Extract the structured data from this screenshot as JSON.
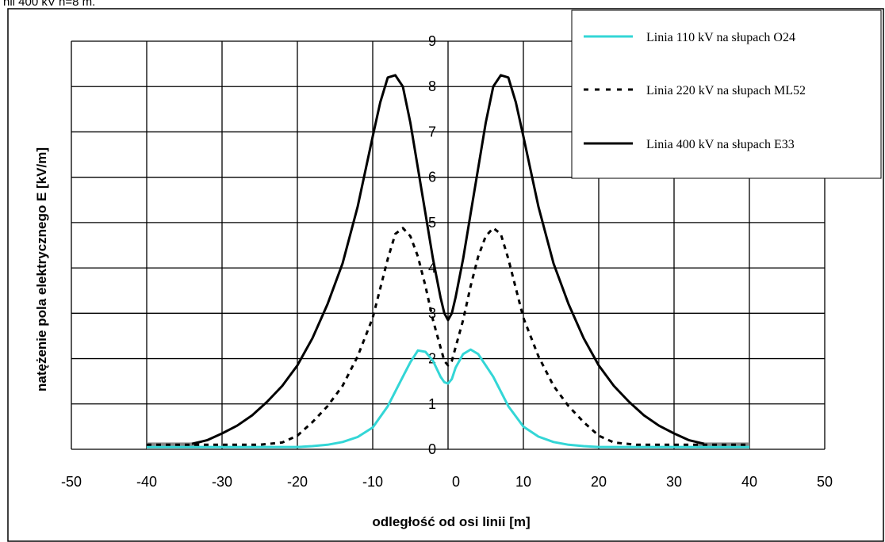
{
  "caption": "nii 400 kV h=8 m.",
  "chart_data": {
    "type": "line",
    "title": "",
    "xlabel": "odległość od osi linii [m]",
    "ylabel": "natężenie pola elektrycznego E [kV/m]",
    "xlim": [
      -50,
      50
    ],
    "ylim": [
      0,
      9
    ],
    "x_ticks": [
      -50,
      -40,
      -30,
      -20,
      -10,
      0,
      10,
      20,
      30,
      40,
      50
    ],
    "y_ticks": [
      0,
      1,
      2,
      3,
      4,
      5,
      6,
      7,
      8,
      9
    ],
    "grid": true,
    "legend_position": "top-right",
    "series": [
      {
        "name": "Linia 110 kV na słupach O24",
        "color": "#33d6d6",
        "style": "solid",
        "x": [
          -40,
          -30,
          -25,
          -20,
          -18,
          -16,
          -14,
          -12,
          -10,
          -8,
          -6,
          -5,
          -4,
          -3,
          -2,
          -1,
          -0.5,
          0,
          0.5,
          1,
          2,
          3,
          4,
          6,
          8,
          10,
          12,
          14,
          16,
          18,
          20,
          25,
          30,
          40
        ],
        "y": [
          0.05,
          0.05,
          0.05,
          0.05,
          0.07,
          0.1,
          0.16,
          0.27,
          0.48,
          0.95,
          1.6,
          1.92,
          2.18,
          2.15,
          1.95,
          1.6,
          1.48,
          1.45,
          1.55,
          1.8,
          2.1,
          2.2,
          2.1,
          1.6,
          0.95,
          0.5,
          0.28,
          0.16,
          0.1,
          0.07,
          0.05,
          0.05,
          0.05,
          0.05
        ]
      },
      {
        "name": "Linia 220 kV na słupach ML52",
        "color": "#000000",
        "style": "dashed",
        "x": [
          -40,
          -30,
          -25,
          -22,
          -20,
          -18,
          -16,
          -14,
          -12,
          -10,
          -8,
          -7,
          -6,
          -5,
          -4,
          -3,
          -2,
          -1,
          -0.5,
          0,
          0.5,
          1,
          2,
          3,
          4,
          5,
          6,
          7,
          8,
          10,
          12,
          14,
          16,
          18,
          20,
          22,
          25,
          30,
          40
        ],
        "y": [
          0.1,
          0.1,
          0.1,
          0.15,
          0.3,
          0.6,
          0.95,
          1.4,
          2.05,
          2.9,
          4.2,
          4.75,
          4.88,
          4.7,
          4.25,
          3.6,
          2.85,
          2.25,
          1.95,
          1.85,
          1.95,
          2.25,
          2.85,
          3.6,
          4.25,
          4.7,
          4.88,
          4.75,
          4.2,
          2.9,
          2.05,
          1.4,
          0.95,
          0.6,
          0.3,
          0.15,
          0.1,
          0.1,
          0.1
        ]
      },
      {
        "name": "Linia 400 kV na słupach E33",
        "color": "#000000",
        "style": "solid",
        "x": [
          -34,
          -32,
          -30,
          -28,
          -26,
          -24,
          -22,
          -20,
          -18,
          -16,
          -14,
          -12,
          -10,
          -9,
          -8,
          -7,
          -6,
          -5,
          -4,
          -3,
          -2,
          -1,
          -0.5,
          0,
          0.5,
          1,
          2,
          3,
          4,
          5,
          6,
          7,
          8,
          9,
          10,
          12,
          14,
          16,
          18,
          20,
          22,
          24,
          26,
          28,
          30,
          32,
          34
        ],
        "y": [
          0.12,
          0.2,
          0.35,
          0.52,
          0.75,
          1.05,
          1.4,
          1.85,
          2.45,
          3.2,
          4.1,
          5.35,
          6.9,
          7.65,
          8.2,
          8.25,
          8.0,
          7.2,
          6.2,
          5.2,
          4.2,
          3.35,
          3.0,
          2.85,
          3.0,
          3.35,
          4.2,
          5.2,
          6.2,
          7.2,
          8.0,
          8.25,
          8.2,
          7.65,
          6.9,
          5.35,
          4.1,
          3.2,
          2.45,
          1.85,
          1.4,
          1.05,
          0.75,
          0.52,
          0.35,
          0.2,
          0.12
        ]
      }
    ]
  }
}
